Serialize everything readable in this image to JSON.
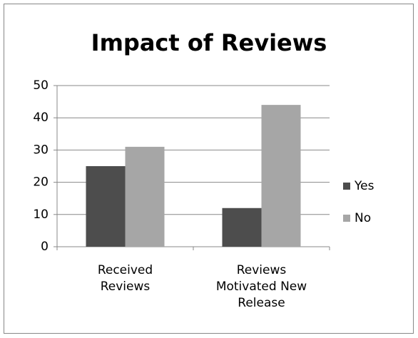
{
  "chart_data": {
    "type": "bar",
    "title": "Impact of Reviews",
    "categories": [
      "Received Reviews",
      "Reviews Motivated New Release"
    ],
    "series": [
      {
        "name": "Yes",
        "color": "#4d4d4d",
        "values": [
          25,
          12
        ]
      },
      {
        "name": "No",
        "color": "#a6a6a6",
        "values": [
          31,
          44
        ]
      }
    ],
    "ylim": [
      0,
      50
    ],
    "yticks": [
      0,
      10,
      20,
      30,
      40,
      50
    ],
    "grid": true,
    "legend": "right"
  }
}
